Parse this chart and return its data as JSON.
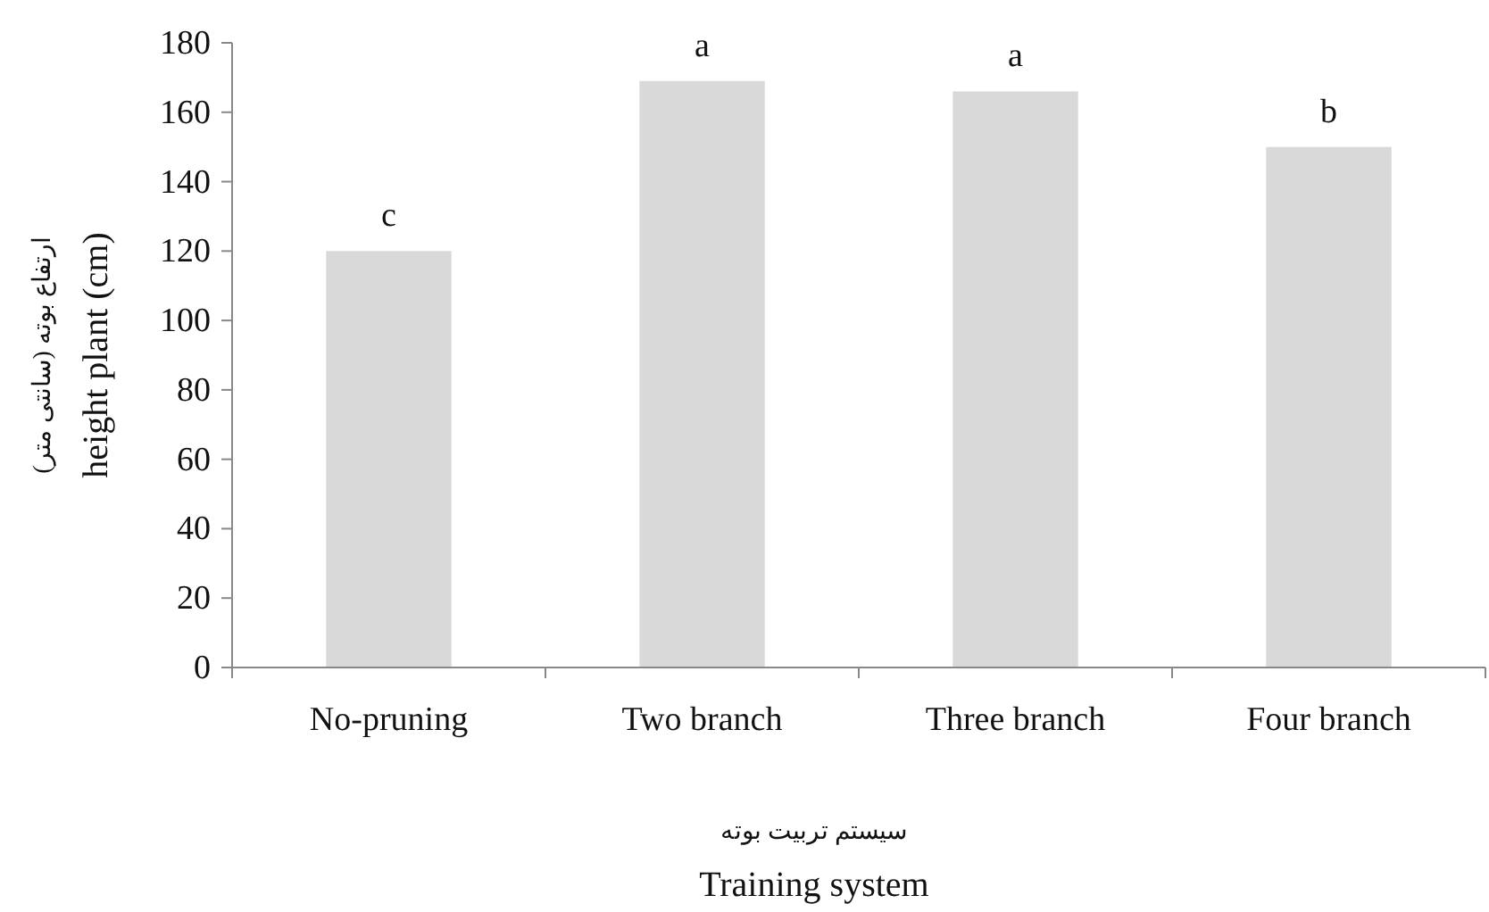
{
  "chart_data": {
    "type": "bar",
    "categories": [
      "No-pruning",
      "Two branch",
      "Three branch",
      "Four branch"
    ],
    "values": [
      120,
      169,
      166,
      150
    ],
    "color": "#d9d9d9",
    "ylim": [
      0,
      180
    ],
    "yticks": [
      0,
      20,
      40,
      60,
      80,
      100,
      120,
      140,
      160,
      180
    ],
    "ylabel": "ارتفاع بوته (سانتی متر)\nheight plant (cm)",
    "xlabel": "سیستم تربیت بوته\nTraining system",
    "annotations": [
      {
        "text": "c",
        "x": "No-pruning",
        "y": 120
      },
      {
        "text": "a",
        "x": "Two branch",
        "y": 169
      },
      {
        "text": "a",
        "x": "Three branch",
        "y": 166
      },
      {
        "text": "b",
        "x": "Four branch",
        "y": 150
      }
    ]
  }
}
